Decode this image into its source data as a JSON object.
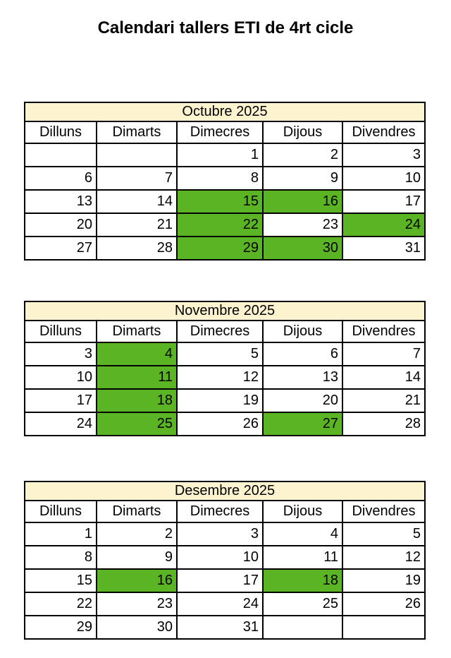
{
  "page_title": "Calendari tallers ETI de 4rt cicle",
  "colors": {
    "page_bg": "#FFFFFF",
    "text": "#000000",
    "table_border": "#000000",
    "month_header_bg": "#FDF3CE",
    "highlight_green": "#5AB423"
  },
  "day_headers": [
    "Dilluns",
    "Dimarts",
    "Dimecres",
    "Dijous",
    "Divendres"
  ],
  "months": [
    {
      "title": "Octubre 2025",
      "weeks": [
        [
          {
            "day": "",
            "hl": false
          },
          {
            "day": "",
            "hl": false
          },
          {
            "day": "1",
            "hl": false
          },
          {
            "day": "2",
            "hl": false
          },
          {
            "day": "3",
            "hl": false
          }
        ],
        [
          {
            "day": "6",
            "hl": false
          },
          {
            "day": "7",
            "hl": false
          },
          {
            "day": "8",
            "hl": false
          },
          {
            "day": "9",
            "hl": false
          },
          {
            "day": "10",
            "hl": false
          }
        ],
        [
          {
            "day": "13",
            "hl": false
          },
          {
            "day": "14",
            "hl": false
          },
          {
            "day": "15",
            "hl": true
          },
          {
            "day": "16",
            "hl": true
          },
          {
            "day": "17",
            "hl": false
          }
        ],
        [
          {
            "day": "20",
            "hl": false
          },
          {
            "day": "21",
            "hl": false
          },
          {
            "day": "22",
            "hl": true
          },
          {
            "day": "23",
            "hl": false
          },
          {
            "day": "24",
            "hl": true
          }
        ],
        [
          {
            "day": "27",
            "hl": false
          },
          {
            "day": "28",
            "hl": false
          },
          {
            "day": "29",
            "hl": true
          },
          {
            "day": "30",
            "hl": true
          },
          {
            "day": "31",
            "hl": false
          }
        ]
      ]
    },
    {
      "title": "Novembre 2025",
      "weeks": [
        [
          {
            "day": "3",
            "hl": false
          },
          {
            "day": "4",
            "hl": true
          },
          {
            "day": "5",
            "hl": false
          },
          {
            "day": "6",
            "hl": false
          },
          {
            "day": "7",
            "hl": false
          }
        ],
        [
          {
            "day": "10",
            "hl": false
          },
          {
            "day": "11",
            "hl": true
          },
          {
            "day": "12",
            "hl": false
          },
          {
            "day": "13",
            "hl": false
          },
          {
            "day": "14",
            "hl": false
          }
        ],
        [
          {
            "day": "17",
            "hl": false
          },
          {
            "day": "18",
            "hl": true
          },
          {
            "day": "19",
            "hl": false
          },
          {
            "day": "20",
            "hl": false
          },
          {
            "day": "21",
            "hl": false
          }
        ],
        [
          {
            "day": "24",
            "hl": false
          },
          {
            "day": "25",
            "hl": true
          },
          {
            "day": "26",
            "hl": false
          },
          {
            "day": "27",
            "hl": true
          },
          {
            "day": "28",
            "hl": false
          }
        ]
      ]
    },
    {
      "title": "Desembre 2025",
      "weeks": [
        [
          {
            "day": "1",
            "hl": false
          },
          {
            "day": "2",
            "hl": false
          },
          {
            "day": "3",
            "hl": false
          },
          {
            "day": "4",
            "hl": false
          },
          {
            "day": "5",
            "hl": false
          }
        ],
        [
          {
            "day": "8",
            "hl": false
          },
          {
            "day": "9",
            "hl": false
          },
          {
            "day": "10",
            "hl": false
          },
          {
            "day": "11",
            "hl": false
          },
          {
            "day": "12",
            "hl": false
          }
        ],
        [
          {
            "day": "15",
            "hl": false
          },
          {
            "day": "16",
            "hl": true
          },
          {
            "day": "17",
            "hl": false
          },
          {
            "day": "18",
            "hl": true
          },
          {
            "day": "19",
            "hl": false
          }
        ],
        [
          {
            "day": "22",
            "hl": false
          },
          {
            "day": "23",
            "hl": false
          },
          {
            "day": "24",
            "hl": false
          },
          {
            "day": "25",
            "hl": false
          },
          {
            "day": "26",
            "hl": false
          }
        ],
        [
          {
            "day": "29",
            "hl": false
          },
          {
            "day": "30",
            "hl": false
          },
          {
            "day": "31",
            "hl": false
          },
          {
            "day": "",
            "hl": false
          },
          {
            "day": "",
            "hl": false
          }
        ]
      ]
    }
  ]
}
